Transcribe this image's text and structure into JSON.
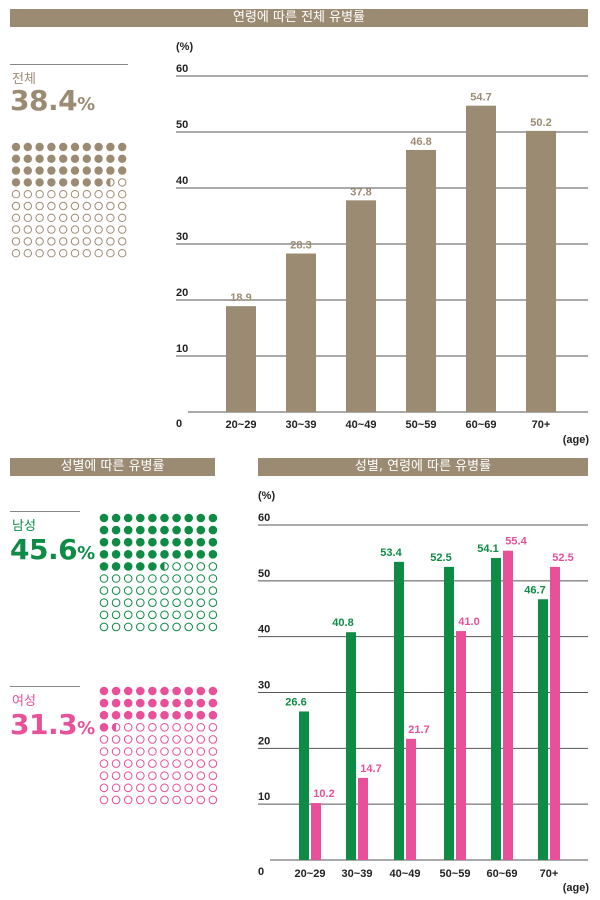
{
  "colors": {
    "brown": "#9c8b73",
    "green": "#0e8b45",
    "pink": "#e8509a",
    "grid": "#555555"
  },
  "total": {
    "banner": "연령에 따른 전체 유병률",
    "label": "전체",
    "value": "38.4",
    "unit": "%",
    "percent": 38.4
  },
  "gender": {
    "banner": "성별에 따른 유병률",
    "male": {
      "label": "남성",
      "value": "45.6",
      "unit": "%",
      "percent": 45.6
    },
    "female": {
      "label": "여성",
      "value": "31.3",
      "unit": "%",
      "percent": 31.3
    }
  },
  "gender_age": {
    "banner": "성별, 연령에 따른 유병률"
  },
  "chart_data": [
    {
      "type": "bar",
      "title": "연령에 따른 전체 유병률",
      "ylabel": "(%)",
      "xlabel": "(age)",
      "categories": [
        "20~29",
        "30~39",
        "40~49",
        "50~59",
        "60~69",
        "70+"
      ],
      "values": [
        18.9,
        28.3,
        37.8,
        46.8,
        54.7,
        50.2
      ],
      "ylim": [
        0,
        60
      ],
      "yticks": [
        0,
        10,
        20,
        30,
        40,
        50,
        60
      ],
      "grid": true
    },
    {
      "type": "bar",
      "title": "성별, 연령에 따른 유병률",
      "ylabel": "(%)",
      "xlabel": "(age)",
      "categories": [
        "20~29",
        "30~39",
        "40~49",
        "50~59",
        "60~69",
        "70+"
      ],
      "series": [
        {
          "values": [
            26.6,
            40.8,
            53.4,
            52.5,
            54.1,
            46.7
          ]
        },
        {
          "values": [
            10.2,
            14.7,
            21.7,
            41.0,
            55.4,
            52.5
          ]
        }
      ],
      "ylim": [
        0,
        60
      ],
      "yticks": [
        0,
        10,
        20,
        30,
        40,
        50,
        60
      ],
      "grid": true
    }
  ]
}
